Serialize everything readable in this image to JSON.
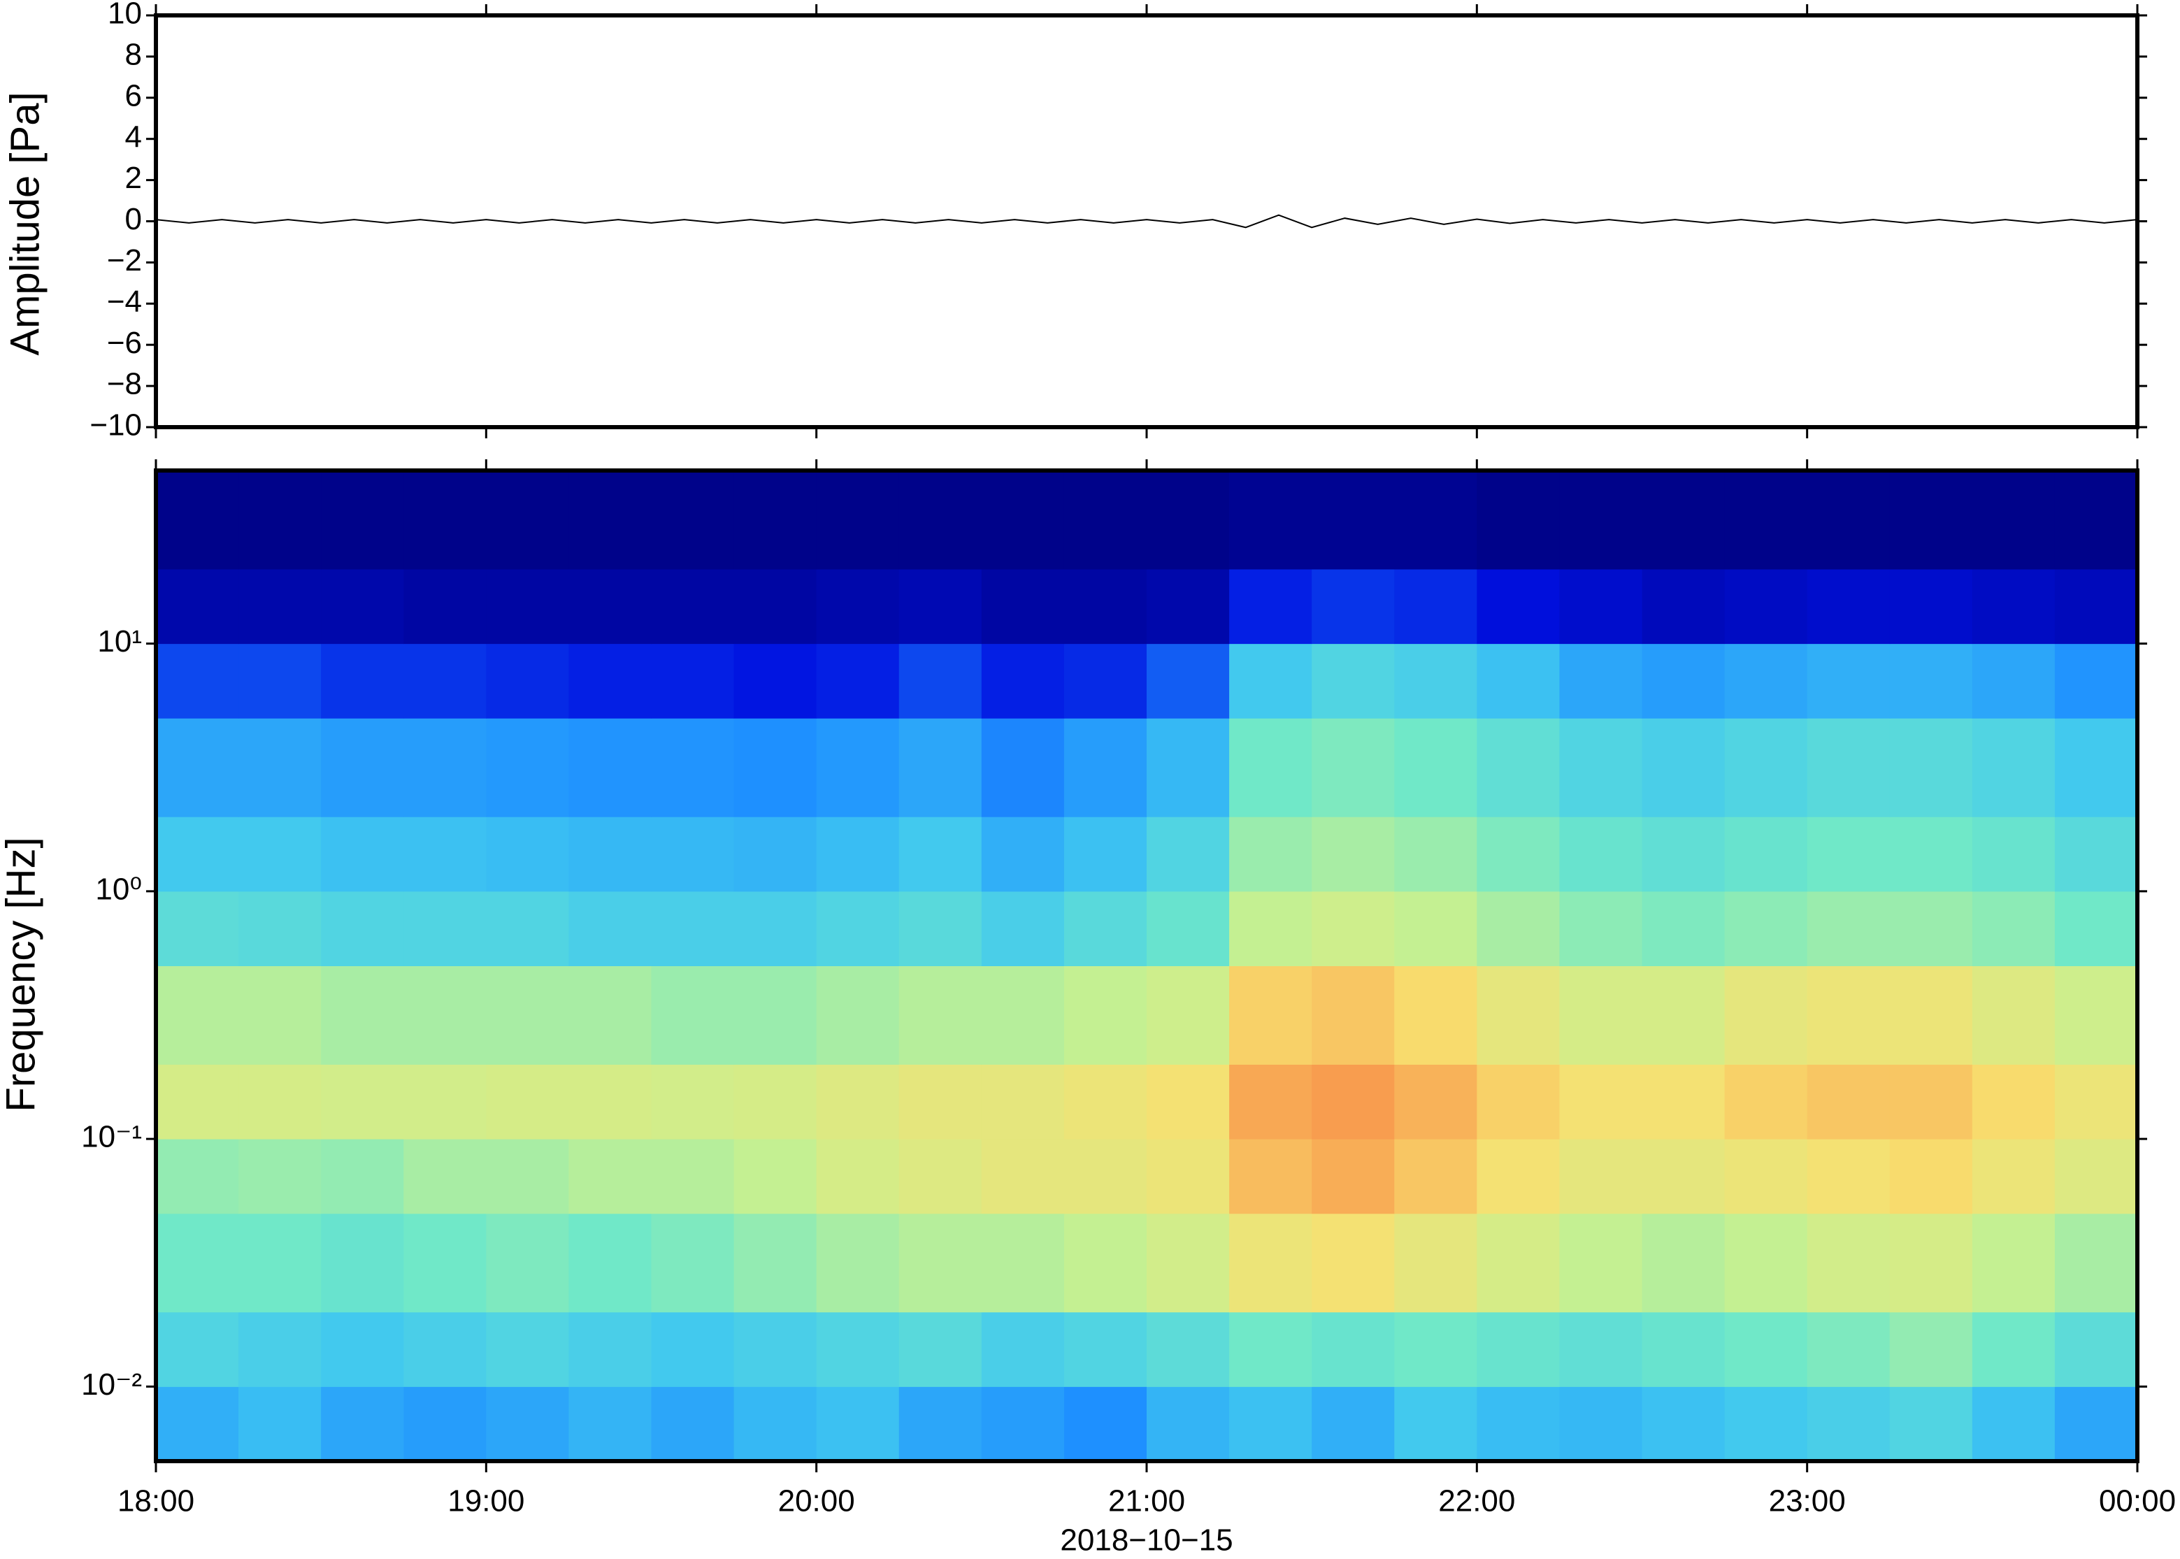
{
  "chart_data": [
    {
      "type": "line",
      "ylabel": "Amplitude [Pa]",
      "color": "#000000",
      "xlim": [
        18,
        24
      ],
      "xticks": [
        {
          "value": 18,
          "label": "18:00"
        },
        {
          "value": 19,
          "label": "19:00"
        },
        {
          "value": 20,
          "label": "20:00"
        },
        {
          "value": 21,
          "label": "21:00"
        },
        {
          "value": 22,
          "label": "22:00"
        },
        {
          "value": 23,
          "label": "23:00"
        },
        {
          "value": 24,
          "label": "00:00"
        }
      ],
      "ylim": [
        -10,
        10
      ],
      "yticks": [
        {
          "value": -10,
          "label": "−10"
        },
        {
          "value": -8,
          "label": "−8"
        },
        {
          "value": -6,
          "label": "−6"
        },
        {
          "value": -4,
          "label": "−4"
        },
        {
          "value": -2,
          "label": "−2"
        },
        0,
        2,
        4,
        6,
        8,
        10
      ],
      "x": [
        18,
        18.1,
        18.2,
        18.3,
        18.4,
        18.5,
        18.6,
        18.7,
        18.8,
        18.9,
        19,
        19.1,
        19.2,
        19.3,
        19.4,
        19.5,
        19.6,
        19.7,
        19.8,
        19.9,
        20,
        20.1,
        20.2,
        20.3,
        20.4,
        20.5,
        20.6,
        20.7,
        20.8,
        20.9,
        21,
        21.1,
        21.2,
        21.3,
        21.4,
        21.5,
        21.6,
        21.7,
        21.8,
        21.9,
        22,
        22.1,
        22.2,
        22.3,
        22.4,
        22.5,
        22.6,
        22.7,
        22.8,
        22.9,
        23,
        23.1,
        23.2,
        23.3,
        23.4,
        23.5,
        23.6,
        23.7,
        23.8,
        23.9,
        24
      ],
      "values": [
        0.08,
        -0.08,
        0.08,
        -0.08,
        0.08,
        -0.08,
        0.08,
        -0.08,
        0.08,
        -0.08,
        0.08,
        -0.08,
        0.08,
        -0.08,
        0.08,
        -0.08,
        0.08,
        -0.08,
        0.08,
        -0.08,
        0.08,
        -0.08,
        0.08,
        -0.08,
        0.08,
        -0.08,
        0.08,
        -0.08,
        0.08,
        -0.08,
        0.08,
        -0.08,
        0.08,
        -0.3,
        0.3,
        -0.3,
        0.15,
        -0.15,
        0.15,
        -0.15,
        0.1,
        -0.1,
        0.08,
        -0.08,
        0.08,
        -0.08,
        0.08,
        -0.08,
        0.08,
        -0.08,
        0.08,
        -0.08,
        0.08,
        -0.08,
        0.08,
        -0.08,
        0.08,
        -0.08,
        0.08,
        -0.08,
        0.08
      ]
    },
    {
      "type": "heatmap",
      "ylabel": "Frequency [Hz]",
      "xlabel": "2018−10−15",
      "log_y": true,
      "colors": [
        "#00007a",
        "#0010e0",
        "#1e90ff",
        "#40c8f0",
        "#70e8c8",
        "#c8f090",
        "#f8e070",
        "#f8a050",
        "#f05030"
      ],
      "xlim": [
        18,
        24
      ],
      "xticks": [
        {
          "value": 18,
          "label": "18:00"
        },
        {
          "value": 19,
          "label": "19:00"
        },
        {
          "value": 20,
          "label": "20:00"
        },
        {
          "value": 21,
          "label": "21:00"
        },
        {
          "value": 22,
          "label": "22:00"
        },
        {
          "value": 23,
          "label": "23:00"
        },
        {
          "value": 24,
          "label": "00:00"
        }
      ],
      "ylim": [
        0.005,
        50
      ],
      "yticks": [
        {
          "value": 0.01,
          "label": "10⁻²"
        },
        {
          "value": 0.1,
          "label": "10⁻¹"
        },
        {
          "value": 1,
          "label": "10⁰"
        },
        {
          "value": 10,
          "label": "10¹"
        }
      ],
      "x": [
        18,
        18.25,
        18.5,
        18.75,
        19,
        19.25,
        19.5,
        19.75,
        20,
        20.25,
        20.5,
        20.75,
        21,
        21.25,
        21.5,
        21.75,
        22,
        22.25,
        22.5,
        22.75,
        23,
        23.25,
        23.5,
        23.75,
        24
      ],
      "y": [
        0.005,
        0.01,
        0.02,
        0.05,
        0.1,
        0.2,
        0.5,
        1,
        2,
        5,
        10,
        20,
        50
      ],
      "z": [
        [
          0.32,
          0.35,
          0.3,
          0.28,
          0.3,
          0.33,
          0.3,
          0.34,
          0.36,
          0.3,
          0.28,
          0.25,
          0.33,
          0.36,
          0.32,
          0.38,
          0.35,
          0.34,
          0.36,
          0.38,
          0.4,
          0.42,
          0.36,
          0.3
        ],
        [
          0.42,
          0.4,
          0.38,
          0.4,
          0.42,
          0.4,
          0.38,
          0.4,
          0.42,
          0.44,
          0.4,
          0.42,
          0.45,
          0.5,
          0.48,
          0.5,
          0.48,
          0.46,
          0.48,
          0.5,
          0.52,
          0.55,
          0.5,
          0.45
        ],
        [
          0.5,
          0.5,
          0.48,
          0.5,
          0.52,
          0.5,
          0.52,
          0.55,
          0.58,
          0.6,
          0.6,
          0.62,
          0.65,
          0.72,
          0.74,
          0.7,
          0.66,
          0.62,
          0.6,
          0.62,
          0.65,
          0.66,
          0.62,
          0.58
        ],
        [
          0.55,
          0.56,
          0.55,
          0.58,
          0.58,
          0.6,
          0.6,
          0.62,
          0.66,
          0.68,
          0.7,
          0.7,
          0.72,
          0.82,
          0.85,
          0.8,
          0.74,
          0.7,
          0.7,
          0.72,
          0.74,
          0.76,
          0.72,
          0.68
        ],
        [
          0.66,
          0.66,
          0.65,
          0.65,
          0.66,
          0.66,
          0.65,
          0.66,
          0.68,
          0.7,
          0.7,
          0.72,
          0.74,
          0.86,
          0.88,
          0.84,
          0.78,
          0.74,
          0.74,
          0.78,
          0.8,
          0.8,
          0.76,
          0.72
        ],
        [
          0.6,
          0.6,
          0.58,
          0.58,
          0.58,
          0.58,
          0.56,
          0.56,
          0.58,
          0.6,
          0.6,
          0.62,
          0.64,
          0.78,
          0.8,
          0.76,
          0.7,
          0.66,
          0.66,
          0.7,
          0.72,
          0.72,
          0.68,
          0.64
        ],
        [
          0.45,
          0.44,
          0.42,
          0.42,
          0.42,
          0.4,
          0.4,
          0.4,
          0.42,
          0.44,
          0.4,
          0.44,
          0.48,
          0.62,
          0.64,
          0.62,
          0.58,
          0.54,
          0.52,
          0.54,
          0.56,
          0.56,
          0.54,
          0.5
        ],
        [
          0.38,
          0.38,
          0.36,
          0.36,
          0.35,
          0.34,
          0.34,
          0.33,
          0.35,
          0.38,
          0.32,
          0.36,
          0.42,
          0.56,
          0.58,
          0.56,
          0.52,
          0.48,
          0.46,
          0.48,
          0.5,
          0.5,
          0.48,
          0.44
        ],
        [
          0.3,
          0.3,
          0.28,
          0.28,
          0.27,
          0.26,
          0.26,
          0.25,
          0.27,
          0.3,
          0.24,
          0.28,
          0.34,
          0.5,
          0.52,
          0.5,
          0.46,
          0.42,
          0.4,
          0.42,
          0.44,
          0.44,
          0.42,
          0.38
        ],
        [
          0.18,
          0.18,
          0.16,
          0.16,
          0.15,
          0.14,
          0.14,
          0.13,
          0.14,
          0.18,
          0.14,
          0.15,
          0.2,
          0.38,
          0.42,
          0.4,
          0.36,
          0.3,
          0.28,
          0.3,
          0.32,
          0.32,
          0.3,
          0.26
        ],
        [
          0.06,
          0.06,
          0.06,
          0.05,
          0.05,
          0.05,
          0.05,
          0.05,
          0.06,
          0.07,
          0.05,
          0.05,
          0.06,
          0.14,
          0.16,
          0.15,
          0.12,
          0.1,
          0.08,
          0.09,
          0.1,
          0.1,
          0.09,
          0.08
        ],
        [
          0.02,
          0.02,
          0.02,
          0.02,
          0.02,
          0.02,
          0.02,
          0.02,
          0.02,
          0.02,
          0.02,
          0.02,
          0.02,
          0.03,
          0.03,
          0.03,
          0.02,
          0.02,
          0.02,
          0.02,
          0.02,
          0.02,
          0.02,
          0.02
        ]
      ]
    }
  ]
}
